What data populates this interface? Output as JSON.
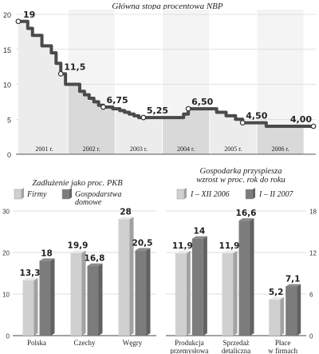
{
  "chart_data": [
    {
      "type": "area",
      "title": "Główna stopa procentowa NBP",
      "ylim": [
        0,
        20
      ],
      "yticks": [
        "0",
        "5",
        "10",
        "15",
        "20"
      ],
      "xlim": [
        2000.9,
        2007.25
      ],
      "x_ticks": [
        {
          "year": 2001,
          "label": "2001 r."
        },
        {
          "year": 2002,
          "label": "2002 r."
        },
        {
          "year": 2003,
          "label": "2003 r."
        },
        {
          "year": 2004,
          "label": "2004 r."
        },
        {
          "year": 2005,
          "label": "2005 r."
        },
        {
          "year": 2006,
          "label": "2006 r."
        }
      ],
      "x": [
        2000.95,
        2001.05,
        2001.15,
        2001.25,
        2001.35,
        2001.45,
        2001.55,
        2001.65,
        2001.75,
        2001.85,
        2001.95,
        2002.1,
        2002.25,
        2002.35,
        2002.45,
        2002.55,
        2002.65,
        2002.75,
        2002.85,
        2002.95,
        2003.1,
        2003.2,
        2003.3,
        2003.4,
        2003.5,
        2003.6,
        2004.0,
        2004.45,
        2004.55,
        2004.65,
        2005.05,
        2005.15,
        2005.35,
        2005.55,
        2005.7,
        2006.2,
        2007.2
      ],
      "values": [
        19,
        19,
        18,
        17,
        17,
        15.5,
        15.5,
        14.5,
        13,
        11.5,
        10,
        10,
        9,
        8.5,
        8,
        7.5,
        7,
        6.75,
        6.75,
        6.5,
        6.25,
        6,
        5.75,
        5.5,
        5.25,
        5.25,
        5.25,
        5.75,
        6.5,
        6.5,
        6.5,
        6,
        5.5,
        5,
        4.5,
        4,
        4
      ],
      "annotations": [
        {
          "x": 2000.95,
          "y": 19,
          "label": "19"
        },
        {
          "x": 2001.85,
          "y": 11.5,
          "label": "11,5"
        },
        {
          "x": 2002.75,
          "y": 6.75,
          "label": "6,75"
        },
        {
          "x": 2003.6,
          "y": 5.25,
          "label": "5,25"
        },
        {
          "x": 2004.55,
          "y": 6.5,
          "label": "6,50"
        },
        {
          "x": 2005.7,
          "y": 4.5,
          "label": "4,50"
        },
        {
          "x": 2007.2,
          "y": 4,
          "label": "4,00"
        }
      ],
      "colors": {
        "line": "#4a4a4a",
        "band_light": "#ececec",
        "band_dark": "#d9d9d9"
      }
    },
    {
      "type": "bar",
      "title": "Zadłużenie jako proc. PKB",
      "ylim": [
        0,
        30
      ],
      "yticks": [
        "0",
        "10",
        "20",
        "30"
      ],
      "categories": [
        "Polska",
        "Czechy",
        "Węgry"
      ],
      "series": [
        {
          "name": "Firmy",
          "values": [
            13.3,
            19.9,
            28
          ],
          "labels": [
            "13,3",
            "19,9",
            "28"
          ],
          "color": "#d0d0d0"
        },
        {
          "name": "Gospodarstwa domowe",
          "values": [
            18,
            16.8,
            20.5
          ],
          "labels": [
            "18",
            "16,8",
            "20,5"
          ],
          "color": "#7c7c7c"
        }
      ],
      "legend_lines": [
        [
          "Firmy"
        ],
        [
          "Gospodarstwa",
          "domowe"
        ]
      ]
    },
    {
      "type": "bar",
      "title_lines": [
        "Gospodarka przyspiesza",
        "wzrost w proc. rok do roku"
      ],
      "ylim": [
        0,
        18
      ],
      "yticks": [
        "0",
        "6",
        "12",
        "18"
      ],
      "categories": [
        [
          "Produkcja",
          "przemysłowa"
        ],
        [
          "Sprzedaż",
          "detaliczna"
        ],
        [
          "Płace",
          "w firmach"
        ]
      ],
      "series": [
        {
          "name": "I – XII 2006",
          "values": [
            11.9,
            11.9,
            5.2
          ],
          "labels": [
            "11,9",
            "11,9",
            "5,2"
          ],
          "color": "#d0d0d0"
        },
        {
          "name": "I – II 2007",
          "values": [
            14,
            16.6,
            7.1
          ],
          "labels": [
            "14",
            "16,6",
            "7,1"
          ],
          "color": "#7c7c7c"
        }
      ]
    }
  ]
}
